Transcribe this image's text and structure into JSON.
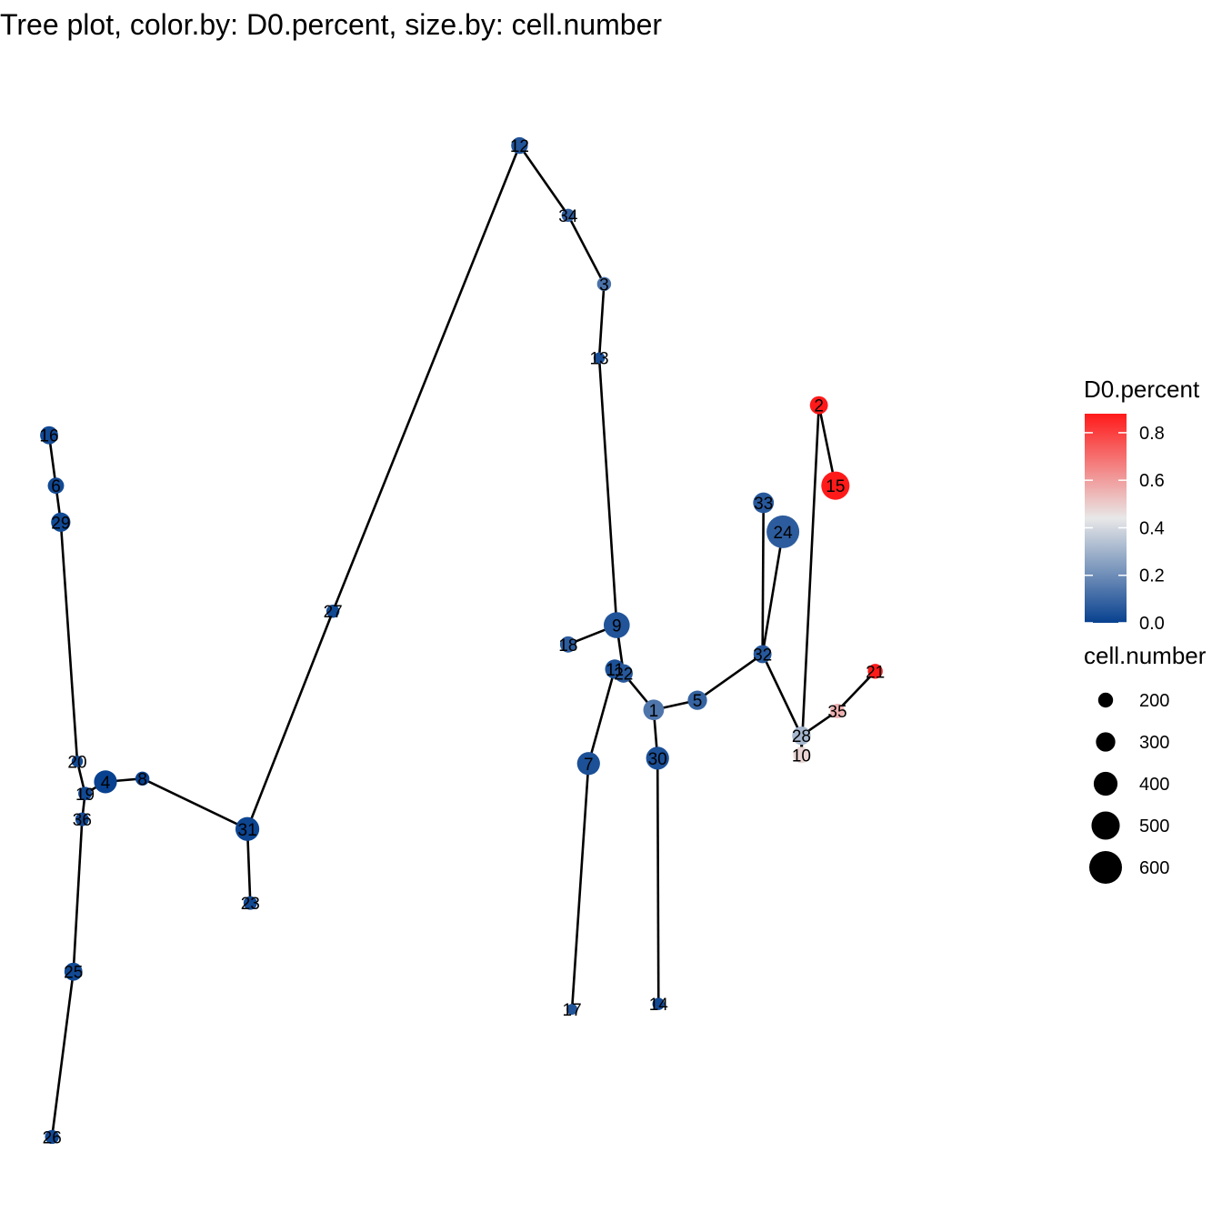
{
  "chart_data": {
    "type": "tree",
    "title": "Tree plot, color.by: D0.percent, size.by: cell.number",
    "color_legend": {
      "title": "D0.percent",
      "ticks": [
        "0.0",
        "0.2",
        "0.4",
        "0.6",
        "0.8"
      ],
      "tick_values": [
        0.0,
        0.2,
        0.4,
        0.6,
        0.8
      ],
      "range": [
        0.0,
        0.88
      ],
      "low_color": "#08418F",
      "mid_color": "#E8E8E8",
      "high_color": "#FF1A1A",
      "mid_value": 0.44
    },
    "size_legend": {
      "title": "cell.number",
      "labels": [
        "200",
        "300",
        "400",
        "500",
        "600"
      ],
      "values": [
        200,
        300,
        400,
        500,
        600
      ]
    },
    "nodes": [
      {
        "id": "1",
        "x": 0.622,
        "y": 0.429,
        "color_value": 0.14,
        "size_value": 330
      },
      {
        "id": "2",
        "x": 0.792,
        "y": 0.713,
        "color_value": 0.88,
        "size_value": 270
      },
      {
        "id": "3",
        "x": 0.571,
        "y": 0.826,
        "color_value": 0.13,
        "size_value": 180
      },
      {
        "id": "4",
        "x": 0.058,
        "y": 0.362,
        "color_value": 0.0,
        "size_value": 380
      },
      {
        "id": "5",
        "x": 0.667,
        "y": 0.438,
        "color_value": 0.09,
        "size_value": 300
      },
      {
        "id": "6",
        "x": 0.007,
        "y": 0.638,
        "color_value": 0.02,
        "size_value": 230
      },
      {
        "id": "7",
        "x": 0.555,
        "y": 0.379,
        "color_value": 0.04,
        "size_value": 380
      },
      {
        "id": "8",
        "x": 0.096,
        "y": 0.365,
        "color_value": 0.0,
        "size_value": 180
      },
      {
        "id": "9",
        "x": 0.584,
        "y": 0.508,
        "color_value": 0.05,
        "size_value": 450
      },
      {
        "id": "10",
        "x": 0.774,
        "y": 0.387,
        "color_value": 0.48,
        "size_value": 230
      },
      {
        "id": "11",
        "x": 0.582,
        "y": 0.467,
        "color_value": 0.04,
        "size_value": 300
      },
      {
        "id": "12",
        "x": 0.484,
        "y": 0.955,
        "color_value": 0.05,
        "size_value": 240
      },
      {
        "id": "13",
        "x": 0.566,
        "y": 0.757,
        "color_value": 0.03,
        "size_value": 120
      },
      {
        "id": "14",
        "x": 0.627,
        "y": 0.155,
        "color_value": 0.02,
        "size_value": 140
      },
      {
        "id": "15",
        "x": 0.809,
        "y": 0.638,
        "color_value": 0.88,
        "size_value": 500
      },
      {
        "id": "16",
        "x": 0.0,
        "y": 0.685,
        "color_value": 0.02,
        "size_value": 270
      },
      {
        "id": "17",
        "x": 0.538,
        "y": 0.15,
        "color_value": 0.05,
        "size_value": 110
      },
      {
        "id": "18",
        "x": 0.534,
        "y": 0.49,
        "color_value": 0.07,
        "size_value": 230
      },
      {
        "id": "19",
        "x": 0.037,
        "y": 0.351,
        "color_value": 0.02,
        "size_value": 170
      },
      {
        "id": "20",
        "x": 0.029,
        "y": 0.381,
        "color_value": 0.02,
        "size_value": 120
      },
      {
        "id": "21",
        "x": 0.85,
        "y": 0.465,
        "color_value": 0.88,
        "size_value": 200
      },
      {
        "id": "22",
        "x": 0.591,
        "y": 0.463,
        "color_value": 0.06,
        "size_value": 280
      },
      {
        "id": "23",
        "x": 0.207,
        "y": 0.249,
        "color_value": 0.02,
        "size_value": 170
      },
      {
        "id": "24",
        "x": 0.755,
        "y": 0.595,
        "color_value": 0.07,
        "size_value": 600
      },
      {
        "id": "25",
        "x": 0.025,
        "y": 0.185,
        "color_value": 0.02,
        "size_value": 270
      },
      {
        "id": "26",
        "x": 0.003,
        "y": 0.031,
        "color_value": 0.02,
        "size_value": 180
      },
      {
        "id": "27",
        "x": 0.292,
        "y": 0.521,
        "color_value": 0.02,
        "size_value": 160
      },
      {
        "id": "28",
        "x": 0.774,
        "y": 0.405,
        "color_value": 0.31,
        "size_value": 280
      },
      {
        "id": "29",
        "x": 0.012,
        "y": 0.604,
        "color_value": 0.02,
        "size_value": 300
      },
      {
        "id": "30",
        "x": 0.626,
        "y": 0.384,
        "color_value": 0.04,
        "size_value": 380
      },
      {
        "id": "31",
        "x": 0.204,
        "y": 0.318,
        "color_value": 0.01,
        "size_value": 400
      },
      {
        "id": "32",
        "x": 0.734,
        "y": 0.481,
        "color_value": 0.06,
        "size_value": 270
      },
      {
        "id": "33",
        "x": 0.735,
        "y": 0.622,
        "color_value": 0.06,
        "size_value": 330
      },
      {
        "id": "34",
        "x": 0.534,
        "y": 0.89,
        "color_value": 0.08,
        "size_value": 160
      },
      {
        "id": "35",
        "x": 0.811,
        "y": 0.428,
        "color_value": 0.56,
        "size_value": 190
      },
      {
        "id": "36",
        "x": 0.034,
        "y": 0.327,
        "color_value": 0.02,
        "size_value": 170
      }
    ],
    "edges": [
      [
        "16",
        "6"
      ],
      [
        "6",
        "29"
      ],
      [
        "29",
        "20"
      ],
      [
        "20",
        "19"
      ],
      [
        "19",
        "36"
      ],
      [
        "36",
        "25"
      ],
      [
        "25",
        "26"
      ],
      [
        "19",
        "4"
      ],
      [
        "4",
        "8"
      ],
      [
        "8",
        "31"
      ],
      [
        "31",
        "23"
      ],
      [
        "31",
        "27"
      ],
      [
        "27",
        "12"
      ],
      [
        "12",
        "34"
      ],
      [
        "34",
        "3"
      ],
      [
        "3",
        "13"
      ],
      [
        "13",
        "9"
      ],
      [
        "9",
        "18"
      ],
      [
        "9",
        "22"
      ],
      [
        "22",
        "11"
      ],
      [
        "11",
        "7"
      ],
      [
        "7",
        "17"
      ],
      [
        "22",
        "1"
      ],
      [
        "1",
        "30"
      ],
      [
        "30",
        "14"
      ],
      [
        "1",
        "5"
      ],
      [
        "5",
        "32"
      ],
      [
        "32",
        "33"
      ],
      [
        "32",
        "24"
      ],
      [
        "32",
        "28"
      ],
      [
        "28",
        "35"
      ],
      [
        "35",
        "21"
      ],
      [
        "28",
        "10"
      ],
      [
        "10",
        "2"
      ],
      [
        "2",
        "15"
      ]
    ]
  }
}
